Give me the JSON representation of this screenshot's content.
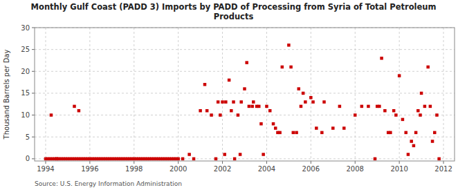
{
  "chart_data": {
    "type": "scatter",
    "title": "Monthly Gulf Coast (PADD 3) Imports by PADD of Processing from Syria of Total Petroleum\nProducts",
    "ylabel": "Thousand Barrels per Day",
    "annotations": [
      "Source: U.S. Energy Information Administration"
    ],
    "color": "#cc0000",
    "marker": "square",
    "grid": true,
    "xlim": [
      1993.5,
      2012.5
    ],
    "ylim": [
      -0.5,
      30
    ],
    "xticks": [
      1994,
      1996,
      1998,
      2000,
      2002,
      2004,
      2006,
      2008,
      2010,
      2012
    ],
    "yticks": [
      0,
      5,
      10,
      15,
      20,
      25,
      30
    ],
    "x": [
      1994.25,
      1994.5,
      1995.3,
      1995.5,
      1994.0,
      1994.1,
      1994.2,
      1994.3,
      1994.4,
      1994.5,
      1994.6,
      1994.7,
      1994.8,
      1994.9,
      1995.0,
      1995.1,
      1995.2,
      1995.3,
      1995.4,
      1995.5,
      1995.6,
      1995.7,
      1995.8,
      1995.9,
      1996.0,
      1996.1,
      1996.2,
      1996.3,
      1996.4,
      1996.5,
      1996.6,
      1996.7,
      1996.8,
      1996.9,
      1997.0,
      1997.1,
      1997.2,
      1997.3,
      1997.4,
      1997.5,
      1997.6,
      1997.7,
      1997.8,
      1997.9,
      1998.0,
      1998.1,
      1998.2,
      1998.3,
      1998.4,
      1998.5,
      1998.6,
      1998.7,
      1998.8,
      1998.9,
      1999.0,
      1999.1,
      1999.2,
      1999.3,
      1999.4,
      1999.5,
      1999.6,
      1999.7,
      1999.8,
      1999.9,
      2000.0,
      2000.2,
      2000.5,
      2000.7,
      2001.0,
      2001.2,
      2001.3,
      2001.5,
      2001.7,
      2001.8,
      2001.9,
      2002.0,
      2002.1,
      2002.15,
      2002.3,
      2002.4,
      2002.5,
      2002.55,
      2002.7,
      2002.8,
      2002.85,
      2003.0,
      2003.1,
      2003.2,
      2003.35,
      2003.4,
      2003.55,
      2003.65,
      2003.75,
      2003.85,
      2004.0,
      2004.15,
      2004.3,
      2004.4,
      2004.5,
      2004.6,
      2004.7,
      2005.0,
      2005.1,
      2005.2,
      2005.35,
      2005.45,
      2005.55,
      2005.65,
      2005.75,
      2006.0,
      2006.1,
      2006.25,
      2006.5,
      2006.6,
      2007.0,
      2007.3,
      2007.5,
      2008.0,
      2008.3,
      2008.6,
      2008.9,
      2009.0,
      2009.1,
      2009.2,
      2009.35,
      2009.5,
      2009.6,
      2009.75,
      2009.85,
      2010.0,
      2010.15,
      2010.3,
      2010.4,
      2010.55,
      2010.65,
      2010.75,
      2010.85,
      2010.95,
      2011.0,
      2011.15,
      2011.3,
      2011.4,
      2011.5,
      2011.6,
      2011.7,
      2011.8
    ],
    "values": [
      10,
      0,
      12,
      11,
      0,
      0,
      0,
      0,
      0,
      0,
      0,
      0,
      0,
      0,
      0,
      0,
      0,
      0,
      0,
      0,
      0,
      0,
      0,
      0,
      0,
      0,
      0,
      0,
      0,
      0,
      0,
      0,
      0,
      0,
      0,
      0,
      0,
      0,
      0,
      0,
      0,
      0,
      0,
      0,
      0,
      0,
      0,
      0,
      0,
      0,
      0,
      0,
      0,
      0,
      0,
      0,
      0,
      0,
      0,
      0,
      0,
      0,
      0,
      0,
      0,
      0,
      1,
      0,
      11,
      17,
      11,
      10,
      0,
      13,
      10,
      13,
      1,
      13,
      18,
      11,
      13,
      0,
      10,
      1,
      13,
      16,
      22,
      12,
      12,
      13,
      12,
      12,
      8,
      1,
      12,
      11,
      8,
      7,
      6,
      6,
      21,
      26,
      21,
      6,
      6,
      16,
      12,
      15,
      13,
      14,
      13,
      7,
      6,
      13,
      7,
      12,
      7,
      10,
      12,
      12,
      0,
      12,
      12,
      23,
      11,
      6,
      6,
      11,
      10,
      19,
      9,
      6,
      1,
      4,
      3,
      6,
      11,
      10,
      15,
      12,
      21,
      12,
      4,
      6,
      10,
      0
    ]
  }
}
